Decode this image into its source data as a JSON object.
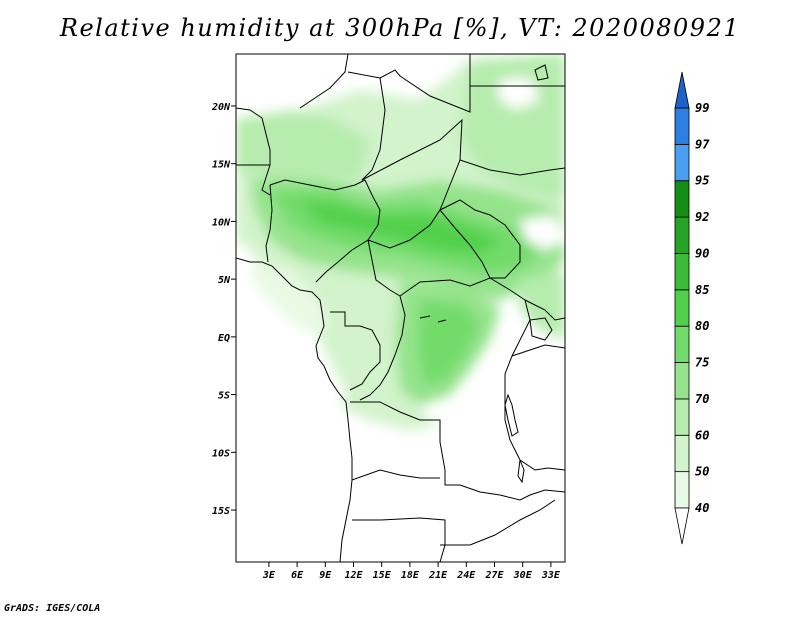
{
  "title": "Relative humidity at 300hPa [%], VT: 2020080921",
  "credit": "GrADS: IGES/COLA",
  "map": {
    "projection": "latlon",
    "lon_range": [
      -0.5,
      34.5
    ],
    "lat_range": [
      -19.5,
      24.5
    ],
    "lon_ticks": [
      {
        "value": 3,
        "label": "3E"
      },
      {
        "value": 6,
        "label": "6E"
      },
      {
        "value": 9,
        "label": "9E"
      },
      {
        "value": 12,
        "label": "12E"
      },
      {
        "value": 15,
        "label": "15E"
      },
      {
        "value": 18,
        "label": "18E"
      },
      {
        "value": 21,
        "label": "21E"
      },
      {
        "value": 24,
        "label": "24E"
      },
      {
        "value": 27,
        "label": "27E"
      },
      {
        "value": 30,
        "label": "30E"
      },
      {
        "value": 33,
        "label": "33E"
      }
    ],
    "lat_ticks": [
      {
        "value": 20,
        "label": "20N"
      },
      {
        "value": 15,
        "label": "15N"
      },
      {
        "value": 10,
        "label": "10N"
      },
      {
        "value": 5,
        "label": "5N"
      },
      {
        "value": 0,
        "label": "EQ"
      },
      {
        "value": -5,
        "label": "5S"
      },
      {
        "value": -10,
        "label": "10S"
      },
      {
        "value": -15,
        "label": "15S"
      }
    ]
  },
  "colorbar": {
    "levels": [
      {
        "label": "40",
        "color": "#e8f9e4"
      },
      {
        "label": "50",
        "color": "#d2f3cb"
      },
      {
        "label": "60",
        "color": "#b6ecad"
      },
      {
        "label": "70",
        "color": "#95e38c"
      },
      {
        "label": "75",
        "color": "#72db6b"
      },
      {
        "label": "80",
        "color": "#52d04c"
      },
      {
        "label": "85",
        "color": "#3cbb38"
      },
      {
        "label": "90",
        "color": "#27a426"
      },
      {
        "label": "92",
        "color": "#158e16"
      },
      {
        "label": "95",
        "color": "#4a9ff0"
      },
      {
        "label": "97",
        "color": "#2e7fe3"
      },
      {
        "label": "99",
        "color": "#1c62c8"
      }
    ],
    "below_color": "#ffffff",
    "above_color": "#1c62c8"
  }
}
